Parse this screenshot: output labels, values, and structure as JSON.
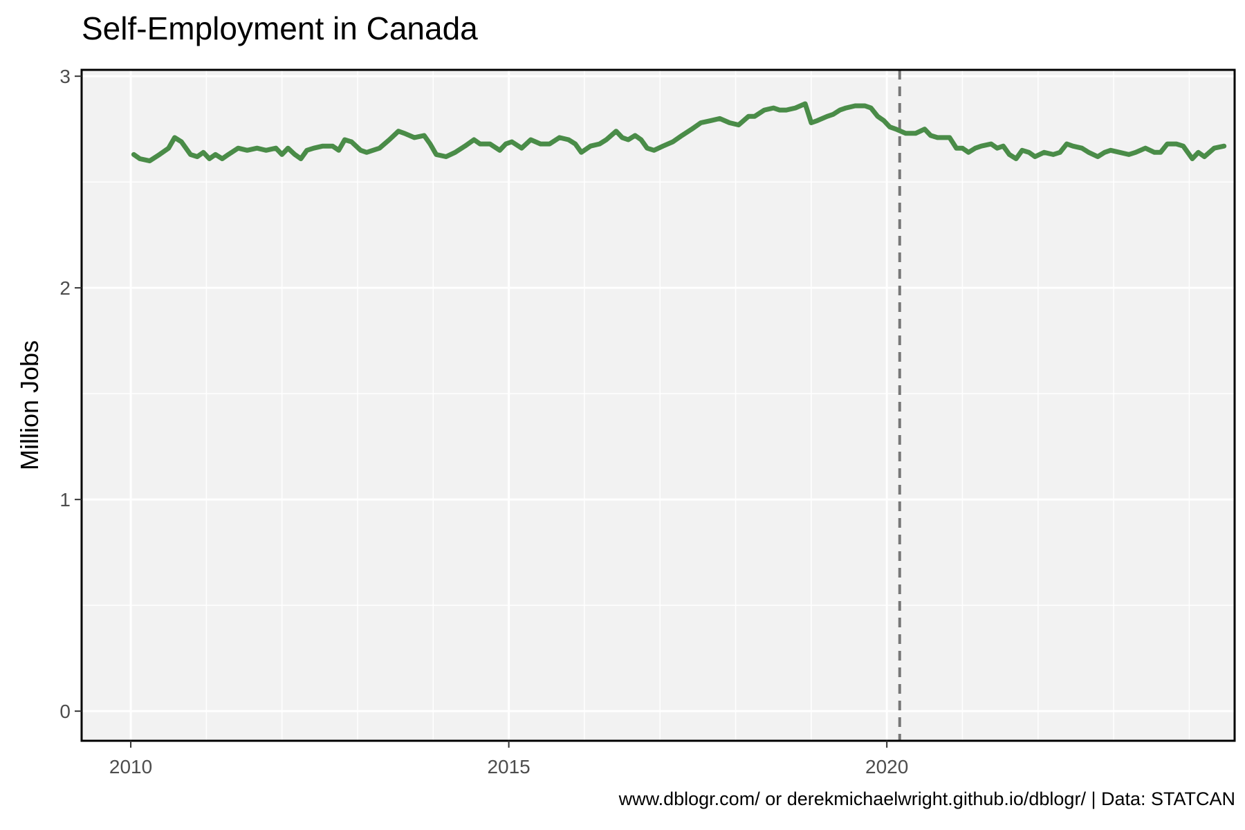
{
  "chart_data": {
    "type": "line",
    "title": "Self-Employment in Canada",
    "xlabel": "",
    "ylabel": "Million Jobs",
    "caption": "www.dblogr.com/ or derekmichaelwright.github.io/dblogr/ | Data: STATCAN",
    "xlim": [
      2009.35,
      2024.6
    ],
    "ylim": [
      -0.14,
      3.03
    ],
    "x_ticks": [
      2010,
      2015,
      2020
    ],
    "x_tick_labels": [
      "2010",
      "2015",
      "2020"
    ],
    "y_ticks": [
      0,
      1,
      2,
      3
    ],
    "y_tick_labels": [
      "0",
      "1",
      "2",
      "3"
    ],
    "reference_line": {
      "x": 2020.17,
      "style": "dashed",
      "color": "#777777"
    },
    "grid": true,
    "panel_color": "#f2f2f2",
    "line_color": "#4a8c48",
    "series": [
      {
        "x": [
          2010.04,
          2010.12,
          2010.25,
          2010.38,
          2010.5,
          2010.58,
          2010.67,
          2010.79,
          2010.88,
          2010.96,
          2011.04,
          2011.12,
          2011.21,
          2011.29,
          2011.42,
          2011.54,
          2011.67,
          2011.79,
          2011.92,
          2012.0,
          2012.08,
          2012.17,
          2012.25,
          2012.33,
          2012.42,
          2012.54,
          2012.67,
          2012.75,
          2012.83,
          2012.92,
          2013.04,
          2013.12,
          2013.29,
          2013.42,
          2013.54,
          2013.62,
          2013.75,
          2013.88,
          2013.96,
          2014.04,
          2014.17,
          2014.29,
          2014.42,
          2014.54,
          2014.62,
          2014.75,
          2014.88,
          2014.96,
          2015.04,
          2015.17,
          2015.29,
          2015.42,
          2015.54,
          2015.67,
          2015.79,
          2015.88,
          2015.96,
          2016.08,
          2016.2,
          2016.29,
          2016.42,
          2016.5,
          2016.58,
          2016.67,
          2016.75,
          2016.83,
          2016.92,
          2017.04,
          2017.17,
          2017.29,
          2017.42,
          2017.54,
          2017.67,
          2017.79,
          2017.92,
          2018.04,
          2018.17,
          2018.25,
          2018.38,
          2018.5,
          2018.58,
          2018.67,
          2018.79,
          2018.92,
          2019.0,
          2019.08,
          2019.21,
          2019.29,
          2019.38,
          2019.46,
          2019.58,
          2019.71,
          2019.79,
          2019.88,
          2019.96,
          2020.04,
          2020.12,
          2020.25,
          2020.38,
          2020.5,
          2020.58,
          2020.67,
          2020.75,
          2020.83,
          2020.92,
          2021.0,
          2021.08,
          2021.17,
          2021.25,
          2021.38,
          2021.46,
          2021.54,
          2021.62,
          2021.71,
          2021.79,
          2021.88,
          2021.96,
          2022.08,
          2022.2,
          2022.29,
          2022.38,
          2022.46,
          2022.58,
          2022.67,
          2022.79,
          2022.88,
          2022.96,
          2023.08,
          2023.2,
          2023.29,
          2023.42,
          2023.54,
          2023.62,
          2023.71,
          2023.83,
          2023.92,
          2024.04,
          2024.12,
          2024.2,
          2024.33,
          2024.46
        ],
        "values": [
          2.63,
          2.61,
          2.6,
          2.63,
          2.66,
          2.71,
          2.69,
          2.63,
          2.62,
          2.64,
          2.61,
          2.63,
          2.61,
          2.63,
          2.66,
          2.65,
          2.66,
          2.65,
          2.66,
          2.63,
          2.66,
          2.63,
          2.61,
          2.65,
          2.66,
          2.67,
          2.67,
          2.65,
          2.7,
          2.69,
          2.65,
          2.64,
          2.66,
          2.7,
          2.74,
          2.73,
          2.71,
          2.72,
          2.68,
          2.63,
          2.62,
          2.64,
          2.67,
          2.7,
          2.68,
          2.68,
          2.65,
          2.68,
          2.69,
          2.66,
          2.7,
          2.68,
          2.68,
          2.71,
          2.7,
          2.68,
          2.64,
          2.67,
          2.68,
          2.7,
          2.74,
          2.71,
          2.7,
          2.72,
          2.7,
          2.66,
          2.65,
          2.67,
          2.69,
          2.72,
          2.75,
          2.78,
          2.79,
          2.8,
          2.78,
          2.77,
          2.81,
          2.81,
          2.84,
          2.85,
          2.84,
          2.84,
          2.85,
          2.87,
          2.78,
          2.79,
          2.81,
          2.82,
          2.84,
          2.85,
          2.86,
          2.86,
          2.85,
          2.81,
          2.79,
          2.76,
          2.75,
          2.73,
          2.73,
          2.75,
          2.72,
          2.71,
          2.71,
          2.71,
          2.66,
          2.66,
          2.64,
          2.66,
          2.67,
          2.68,
          2.66,
          2.67,
          2.63,
          2.61,
          2.65,
          2.64,
          2.62,
          2.64,
          2.63,
          2.64,
          2.68,
          2.67,
          2.66,
          2.64,
          2.62,
          2.64,
          2.65,
          2.64,
          2.63,
          2.64,
          2.66,
          2.64,
          2.64,
          2.68,
          2.68,
          2.67,
          2.61,
          2.64,
          2.62,
          2.66,
          2.67
        ]
      }
    ]
  }
}
